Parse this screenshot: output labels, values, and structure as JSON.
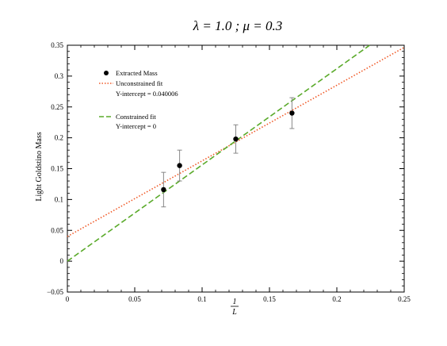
{
  "chart_data": {
    "type": "scatter",
    "title": "λ = 1.0 ; μ = 0.3",
    "xlabel": {
      "numerator": "1",
      "denominator": "L"
    },
    "ylabel": "Light Goldstino Mass",
    "xlim": [
      0,
      0.25
    ],
    "ylim": [
      -0.05,
      0.35
    ],
    "xticks": [
      0,
      0.05,
      0.1,
      0.15,
      0.2,
      0.25
    ],
    "yticks": [
      -0.05,
      0,
      0.05,
      0.1,
      0.15,
      0.2,
      0.25,
      0.3,
      0.35
    ],
    "xtick_labels": [
      "0",
      "0.05",
      "0.1",
      "0.15",
      "0.2",
      "0.25"
    ],
    "ytick_labels": [
      "−0.05",
      "0",
      "0.05",
      "0.1",
      "0.15",
      "0.2",
      "0.25",
      "0.3",
      "0.35"
    ],
    "grid": false,
    "legend_position": "top-left",
    "points": {
      "name": "Extracted Mass",
      "x": [
        0.0714,
        0.0833,
        0.125,
        0.1667
      ],
      "y": [
        0.116,
        0.155,
        0.198,
        0.24
      ],
      "err": [
        0.028,
        0.025,
        0.023,
        0.025
      ],
      "color": "#000000"
    },
    "fits": [
      {
        "name": "Unconstrained fit",
        "detail": "Y-intercept = 0.040006",
        "intercept": 0.040006,
        "slope": 1.226,
        "style": "dotted",
        "color": "#f05a28"
      },
      {
        "name": "Constrained fit",
        "detail": "Y-intercept = 0",
        "intercept": 0,
        "slope": 1.56,
        "style": "dashed",
        "color": "#5aaa2a"
      }
    ]
  }
}
